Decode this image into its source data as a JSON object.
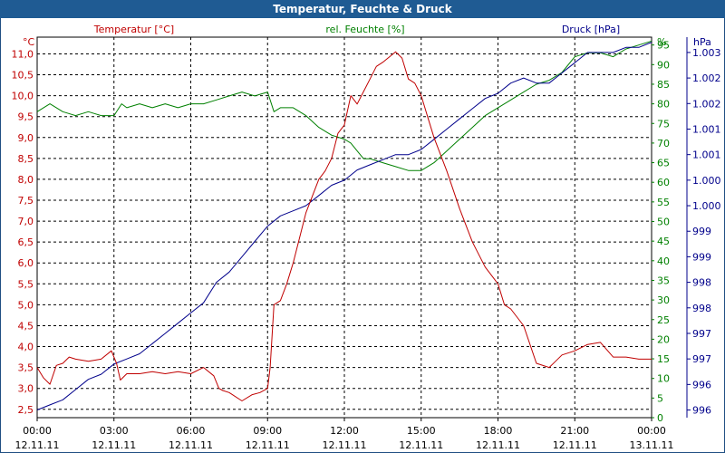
{
  "window": {
    "title": "Temperatur, Feuchte & Druck"
  },
  "colors": {
    "temperature": "#c00000",
    "humidity": "#008000",
    "pressure": "#00008b",
    "title_bar": "#1f5b93"
  },
  "chart_data": {
    "type": "line",
    "title": "Temperatur, Feuchte & Druck",
    "grid": true,
    "x_ticks": [
      "00:00",
      "03:00",
      "06:00",
      "09:00",
      "12:00",
      "15:00",
      "18:00",
      "21:00",
      "00:00"
    ],
    "x_dates": [
      "12.11.11",
      "12.11.11",
      "12.11.11",
      "12.11.11",
      "12.11.11",
      "12.11.11",
      "12.11.11",
      "12.11.11",
      "13.11.11"
    ],
    "axes": {
      "temperature": {
        "label": "Temperatur [°C]",
        "unit": "°C",
        "ylim": [
          2.3,
          11.4
        ],
        "ticks": [
          "2,5",
          "3,0",
          "3,5",
          "4,0",
          "4,5",
          "5,0",
          "5,5",
          "6,0",
          "6,5",
          "7,0",
          "7,5",
          "8,0",
          "8,5",
          "9,0",
          "9,5",
          "10,0",
          "10,5",
          "11,0"
        ]
      },
      "humidity": {
        "label": "rel. Feuchte [%]",
        "unit": "%",
        "ylim": [
          0,
          97
        ],
        "ticks": [
          "0",
          "5",
          "10",
          "15",
          "20",
          "25",
          "30",
          "35",
          "40",
          "45",
          "50",
          "55",
          "60",
          "65",
          "70",
          "75",
          "80",
          "85",
          "90",
          "95"
        ]
      },
      "pressure": {
        "label": "Druck [hPa]",
        "unit": "hPa",
        "ylim": [
          995.85,
          1003.3
        ],
        "ticks": [
          "996",
          "996",
          "997",
          "997",
          "998",
          "998",
          "999",
          "999",
          "1.000",
          "1.000",
          "1.001",
          "1.001",
          "1.002",
          "1.002",
          "1.003"
        ]
      }
    },
    "series": [
      {
        "name": "Temperatur [°C]",
        "axis": "temperature",
        "x": [
          0,
          0.25,
          0.5,
          0.75,
          1,
          1.25,
          1.5,
          2,
          2.5,
          2.9,
          3.1,
          3.25,
          3.5,
          4,
          4.5,
          5,
          5.5,
          6,
          6.5,
          6.9,
          7.1,
          7.25,
          7.5,
          8,
          8.4,
          8.7,
          9,
          9.1,
          9.25,
          9.5,
          9.75,
          10,
          10.5,
          11,
          11.25,
          11.5,
          11.75,
          12,
          12.25,
          12.5,
          12.75,
          13,
          13.25,
          13.5,
          14,
          14.25,
          14.5,
          14.75,
          15,
          15.25,
          15.5,
          16,
          16.5,
          17,
          17.5,
          18,
          18.25,
          18.5,
          19,
          19.5,
          20,
          20.25,
          20.5,
          21,
          21.5,
          22,
          22.5,
          23,
          23.5,
          24
        ],
        "values": [
          3.5,
          3.25,
          3.1,
          3.55,
          3.6,
          3.75,
          3.7,
          3.65,
          3.7,
          3.9,
          3.6,
          3.2,
          3.35,
          3.35,
          3.4,
          3.35,
          3.4,
          3.35,
          3.5,
          3.3,
          3.0,
          2.95,
          2.9,
          2.7,
          2.85,
          2.9,
          3.0,
          3.5,
          5.0,
          5.1,
          5.5,
          6.0,
          7.2,
          8.0,
          8.2,
          8.5,
          9.1,
          9.3,
          10.0,
          9.8,
          10.1,
          10.4,
          10.7,
          10.8,
          11.05,
          10.9,
          10.4,
          10.3,
          10.0,
          9.5,
          9.0,
          8.2,
          7.3,
          6.5,
          5.9,
          5.5,
          5.0,
          4.9,
          4.5,
          3.6,
          3.5,
          3.65,
          3.8,
          3.9,
          4.05,
          4.1,
          3.75,
          3.75,
          3.7,
          3.7
        ]
      },
      {
        "name": "rel. Feuchte [%]",
        "axis": "humidity",
        "x": [
          0,
          0.5,
          1,
          1.5,
          2,
          2.5,
          3,
          3.3,
          3.5,
          4,
          4.5,
          5,
          5.5,
          6,
          6.5,
          7,
          7.5,
          8,
          8.5,
          9,
          9.25,
          9.5,
          10,
          10.5,
          11,
          11.5,
          12,
          12.25,
          12.5,
          12.75,
          13,
          13.5,
          14,
          14.5,
          15,
          15.5,
          16,
          16.5,
          17,
          17.5,
          18,
          18.5,
          19,
          19.5,
          20,
          20.5,
          21,
          21.5,
          22,
          22.5,
          23,
          23.5,
          24
        ],
        "values": [
          78,
          80,
          78,
          77,
          78,
          77,
          77,
          80,
          79,
          80,
          79,
          80,
          79,
          80,
          80,
          81,
          82,
          83,
          82,
          83,
          78,
          79,
          79,
          77,
          74,
          72,
          71,
          70,
          68,
          66,
          66,
          65,
          64,
          63,
          63,
          65,
          68,
          71,
          74,
          77,
          79,
          81,
          83,
          85,
          86,
          88,
          92,
          93,
          93,
          92,
          94,
          95,
          96
        ]
      },
      {
        "name": "Druck [hPa]",
        "axis": "pressure",
        "x": [
          0,
          0.5,
          1,
          1.5,
          2,
          2.5,
          3,
          3.5,
          4,
          4.5,
          5,
          5.5,
          6,
          6.5,
          7,
          7.5,
          8,
          8.5,
          9,
          9.5,
          10,
          10.5,
          11,
          11.5,
          12,
          12.5,
          13,
          13.5,
          14,
          14.5,
          15,
          15.5,
          16,
          16.5,
          17,
          17.5,
          18,
          18.5,
          19,
          19.5,
          20,
          20.5,
          21,
          21.5,
          22,
          22.5,
          23,
          23.5,
          24
        ],
        "values": [
          996.0,
          996.1,
          996.2,
          996.4,
          996.6,
          996.7,
          996.9,
          997.0,
          997.1,
          997.3,
          997.5,
          997.7,
          997.9,
          998.1,
          998.5,
          998.7,
          999.0,
          999.3,
          999.6,
          999.8,
          999.9,
          1000.0,
          1000.2,
          1000.4,
          1000.5,
          1000.7,
          1000.8,
          1000.9,
          1001.0,
          1001.0,
          1001.1,
          1001.3,
          1001.5,
          1001.7,
          1001.9,
          1002.1,
          1002.2,
          1002.4,
          1002.5,
          1002.4,
          1002.4,
          1002.6,
          1002.8,
          1003.0,
          1003.0,
          1003.0,
          1003.1,
          1003.1,
          1003.2
        ]
      }
    ]
  }
}
